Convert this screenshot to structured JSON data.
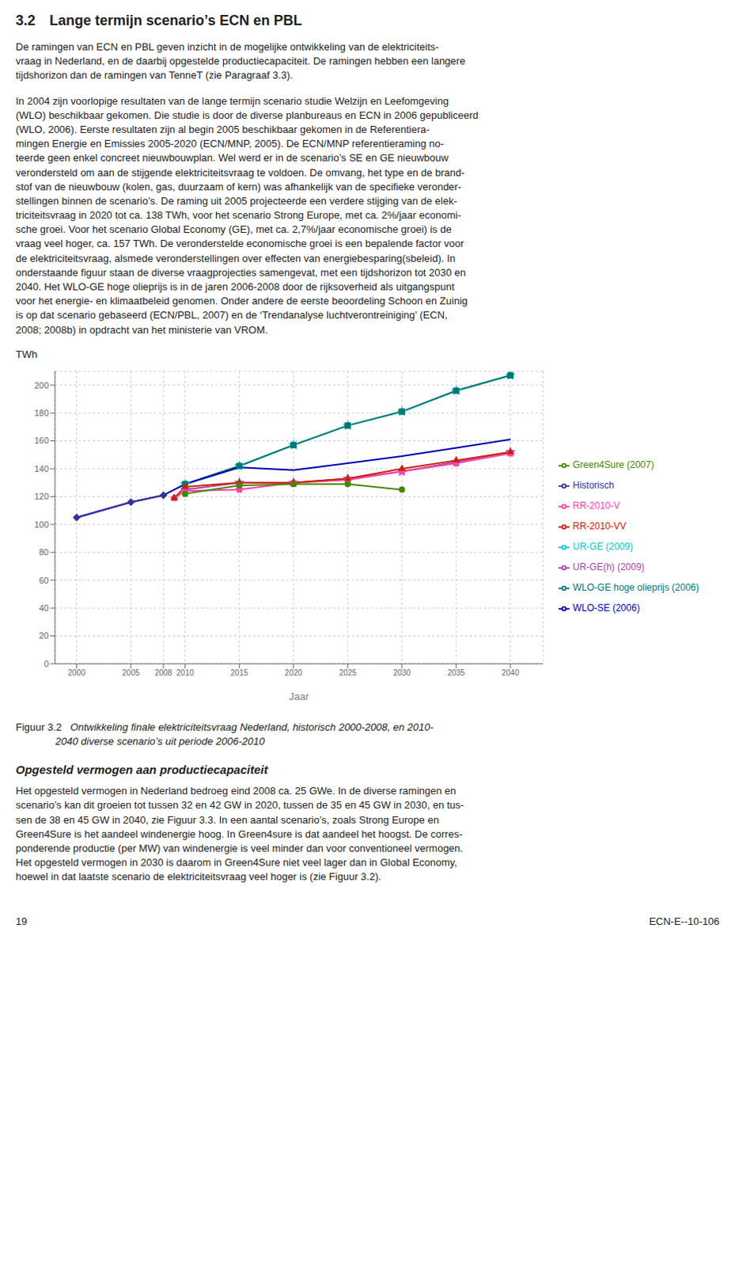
{
  "chart_data": {
    "type": "line",
    "title": "3.2  Lange termijn scenario’s ECN en PBL",
    "xlabel": "Jaar",
    "ylabel": "TWh",
    "xlim": [
      1998,
      2043
    ],
    "xticks": [
      2000,
      2005,
      2008,
      2010,
      2015,
      2020,
      2025,
      2030,
      2035,
      2040
    ],
    "ylim": [
      0,
      210
    ],
    "yticks": [
      0,
      20,
      40,
      60,
      80,
      100,
      120,
      140,
      160,
      180,
      200
    ],
    "grid": true,
    "legend": "right",
    "series": [
      {
        "name": "UR-GE (2009)",
        "color": "#00CCCC",
        "marker": "star",
        "x": [
          2010,
          2015,
          2020,
          2025,
          2030,
          2035,
          2040
        ],
        "values": [
          129,
          142,
          157,
          171,
          181,
          196,
          207
        ]
      },
      {
        "name": "UR-GE(h) (2009)",
        "color": "#AA44AA",
        "marker": "star",
        "x": [
          2010,
          2015,
          2020,
          2025,
          2030,
          2035,
          2040
        ],
        "values": [
          125,
          130,
          130,
          133,
          138,
          145,
          152
        ]
      },
      {
        "name": "WLO-GE hoge olieprijs (2006)",
        "color": "#007777",
        "marker": "square",
        "x": [
          2010,
          2015,
          2020,
          2025,
          2030,
          2035,
          2040
        ],
        "values": [
          129,
          142,
          157,
          171,
          181,
          196,
          207
        ]
      },
      {
        "name": "WLO-SE (2006)",
        "color": "#0000BB",
        "marker": "none",
        "x": [
          2000,
          2005,
          2008,
          2010,
          2015,
          2020,
          2025,
          2030,
          2035,
          2040
        ],
        "values": [
          105,
          116,
          121,
          129,
          141,
          139,
          144,
          149,
          155,
          161
        ]
      },
      {
        "name": "RR-2010-V",
        "color": "#FF44AA",
        "marker": "pentagon",
        "x": [
          2009,
          2010,
          2015,
          2020,
          2025,
          2030,
          2035,
          2040
        ],
        "values": [
          119,
          124,
          125,
          130,
          132,
          138,
          144,
          151
        ]
      },
      {
        "name": "RR-2010-VV",
        "color": "#CC2200",
        "marker": "triangle",
        "x": [
          2009,
          2010,
          2015,
          2020,
          2025,
          2030,
          2035,
          2040
        ],
        "values": [
          119,
          127,
          130,
          130,
          133,
          140,
          146,
          152
        ]
      },
      {
        "name": "Green4Sure (2007)",
        "color": "#448800",
        "marker": "circle",
        "x": [
          2010,
          2015,
          2020,
          2025,
          2030
        ],
        "values": [
          122,
          128,
          129,
          129,
          125
        ]
      },
      {
        "name": "Historisch",
        "color": "#333399",
        "marker": "diamond",
        "x": [
          2000,
          2005,
          2008
        ],
        "values": [
          105,
          116,
          121
        ]
      }
    ],
    "annotations": [
      "De ramingen van ECN en PBL geven inzicht in de mogelijke ontwikkeling van de elektriciteits-\nvraag in Nederland, en de daarbij opgestelde productiecapaciteit. De ramingen hebben een langere\ntijdshorizon dan de ramingen van TenneT (zie Paragraaf 3.3).",
      "In 2004 zijn voorlopige resultaten van de lange termijn scenario studie Welzijn en Leefomgeving\n(WLO) beschikbaar gekomen. Die studie is door de diverse planbureaus en ECN in 2006 gepubliceerd\n(WLO, 2006). Eerste resultaten zijn al begin 2005 beschikbaar gekomen in de Referentiera-\nmingen Energie en Emissies 2005-2020 (ECN/MNP, 2005). De ECN/MNP referentieraming no-\nteerde geen enkel concreet nieuwbouwplan. Wel werd er in de scenario’s SE en GE nieuwbouw\nverondersteld om aan de stijgende elektriciteitsvraag te voldoen. De omvang, het type en de brand-\nstof van de nieuwbouw (kolen, gas, duurzaam of kern) was afhankelijk van de specifieke veronder-\nstellingen binnen de scenario’s. De raming uit 2005 projecteerde een verdere stijging van de elek-\ntriciteitsvraag in 2020 tot ca. 138 TWh, voor het scenario Strong Europe, met ca. 2%/jaar economi-\nsche groei. Voor het scenario Global Economy (GE), met ca. 2,7%/jaar economische groei) is de\nvraag veel hoger, ca. 157 TWh. De veronderstelde economische groei is een bepalende factor voor\nde elektriciteitsvraag, alsmede veronderstellingen over effecten van energiebesparing(sbeleid). In\nonderstaande figuur staan de diverse vraagprojecties samengevat, met een tijdshorizon tot 2030 en\n2040. Het WLO-GE hoge olieprijs is in de jaren 2006-2008 door de rijksoverheid als uitgangspunt\nvoor het energie- en klimaatbeleid genomen. Onder andere de eerste beoordeling Schoon en Zuinig\nis op dat scenario gebaseerd (ECN/PBL, 2007) en de ‘Trendanalyse luchtverontreiniging’ (ECN,\n2008; 2008b) in opdracht van het ministerie van VROM.",
      "Figuur 3.2",
      "   Ontwikkeling finale elektriciteitsvraag Nederland, historisch 2000-2008, en 2010-\n              2040 diverse scenario’s uit periode 2006-2010",
      "Opgesteld vermogen aan productiecapaciteit",
      "Het opgesteld vermogen in Nederland bedroeg eind 2008 ca. 25 GWe. In de diverse ramingen en\nscenario’s kan dit groeien tot tussen 32 en 42 GW in 2020, tussen de 35 en 45 GW in 2030, en tus-\nsen de 38 en 45 GW in 2040, zie Figuur 3.3. In een aantal scenario’s, zoals Strong Europe en\nGreen4Sure is het aandeel windenergie hoog. In Green4sure is dat aandeel het hoogst. De corres-\nponderende productie (per MW) van windenergie is veel minder dan voor conventioneel vermogen.\nHet opgesteld vermogen in 2030 is daarom in Green4Sure niet veel lager dan in Global Economy,\nhoewel in dat laatste scenario de elektriciteitsvraag veel hoger is (zie Figuur 3.2).",
      "19",
      "ECN-E--10-106"
    ]
  }
}
